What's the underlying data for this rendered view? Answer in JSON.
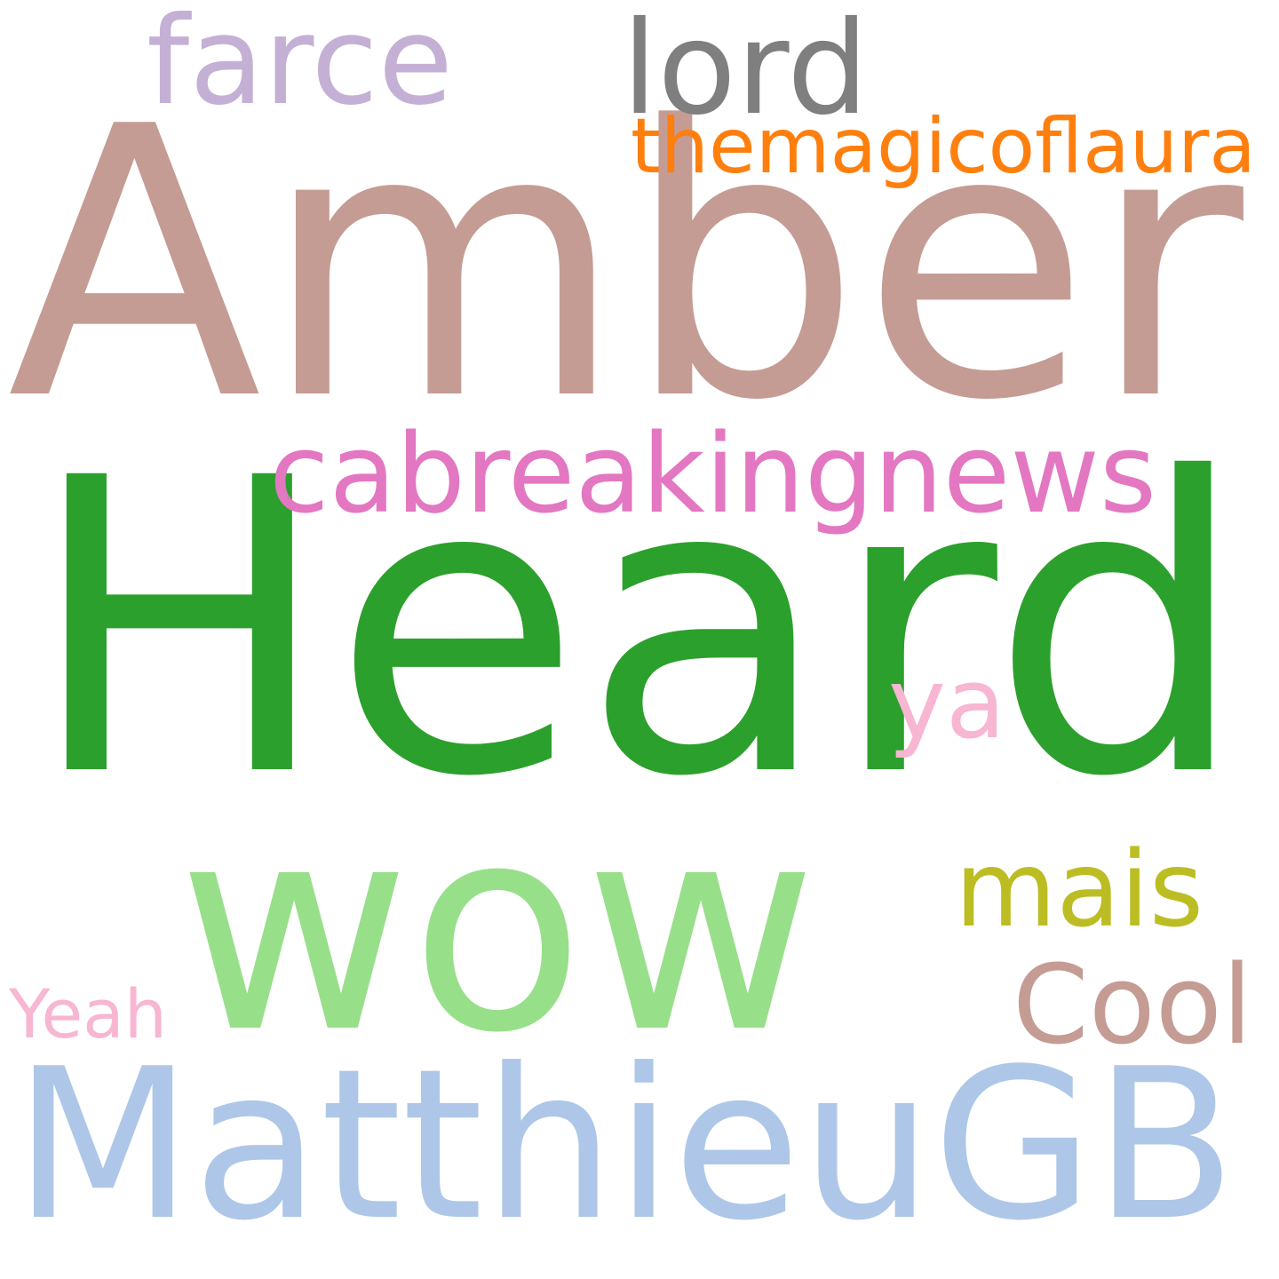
{
  "background": "#ffffff",
  "words": [
    {
      "text": "Amber",
      "color": "#c49c94"
    },
    {
      "text": "Heard",
      "color": "#2ca02c"
    },
    {
      "text": "wow",
      "color": "#98df8a"
    },
    {
      "text": "MatthieuGB",
      "color": "#aec7e8"
    },
    {
      "text": "cabreakingnews",
      "color": "#e377c2"
    },
    {
      "text": "themagicoflaura",
      "color": "#ff7f0e"
    },
    {
      "text": "lord",
      "color": "#7f7f7f"
    },
    {
      "text": "farce",
      "color": "#c5b0d5"
    },
    {
      "text": "mais",
      "color": "#bcbd22"
    },
    {
      "text": "Cool",
      "color": "#c49c94"
    },
    {
      "text": "ya",
      "color": "#f7b6d2"
    },
    {
      "text": "Yeah",
      "color": "#f7b6d2"
    }
  ]
}
